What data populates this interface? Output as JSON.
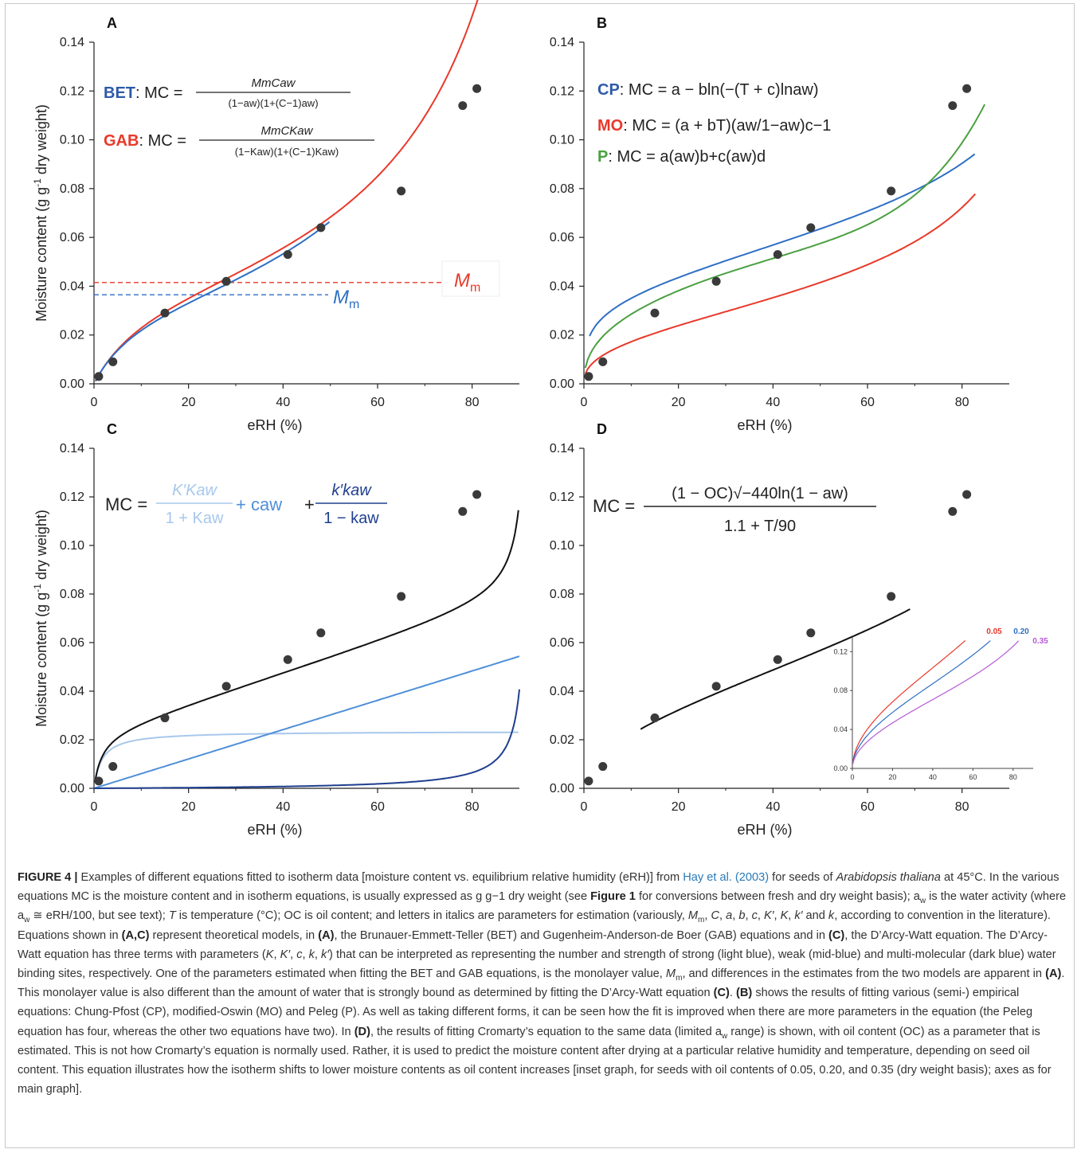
{
  "panels": [
    {
      "id": "A",
      "letter": "A",
      "xlabel": "eRH (%)",
      "ylabel": "Moisture content (g g-1 dry weight)",
      "xticks": [
        0,
        20,
        40,
        60,
        80
      ],
      "yticks": [
        "0.00",
        "0.02",
        "0.04",
        "0.06",
        "0.08",
        "0.10",
        "0.12",
        "0.14"
      ],
      "xlim": [
        0,
        90
      ],
      "ylim": [
        0,
        0.14
      ],
      "points": [
        [
          1,
          0.003
        ],
        [
          4,
          0.009
        ],
        [
          15,
          0.029
        ],
        [
          28,
          0.042
        ],
        [
          41,
          0.053
        ],
        [
          48,
          0.064
        ],
        [
          65,
          0.079
        ],
        [
          78,
          0.114
        ],
        [
          81,
          0.121
        ]
      ],
      "equations": [
        {
          "label": "BET",
          "lhs": ": MC = ",
          "numerator": "MmCaw",
          "denominator": "(1−aw)(1+(C−1)aw)",
          "color": "#2e5aa8"
        },
        {
          "label": "GAB",
          "lhs": ": MC = ",
          "numerator": "MmCKaw",
          "denominator": "(1−Kaw)(1+(C−1)Kaw)",
          "color": "#e8392a"
        }
      ],
      "monolayer": [
        {
          "model": "GAB",
          "value": 0.0415,
          "label": "Mm",
          "color": "#e8392a"
        },
        {
          "model": "BET",
          "value": 0.0365,
          "label": "Mm",
          "color": "#2e6fc4"
        }
      ]
    },
    {
      "id": "B",
      "letter": "B",
      "xlabel": "eRH (%)",
      "xticks": [
        0,
        20,
        40,
        60,
        80
      ],
      "yticks": [
        "0.00",
        "0.02",
        "0.04",
        "0.06",
        "0.08",
        "0.10",
        "0.12",
        "0.14"
      ],
      "xlim": [
        0,
        90
      ],
      "ylim": [
        0,
        0.14
      ],
      "points": [
        [
          1,
          0.003
        ],
        [
          4,
          0.009
        ],
        [
          15,
          0.029
        ],
        [
          28,
          0.042
        ],
        [
          41,
          0.053
        ],
        [
          48,
          0.064
        ],
        [
          65,
          0.079
        ],
        [
          78,
          0.114
        ],
        [
          81,
          0.121
        ]
      ],
      "equations": [
        {
          "label": "CP",
          "text": ": MC = a − bln(−(T + c)lnaw)",
          "color": "#2e5aa8"
        },
        {
          "label": "MO",
          "text": ": MC = (a + bT)(aw/1−aw)c−1",
          "color": "#e8392a"
        },
        {
          "label": "P",
          "text": ": MC = a(aw)b+c(aw)d",
          "color": "#4aa040"
        }
      ]
    },
    {
      "id": "C",
      "letter": "C",
      "xlabel": "eRH (%)",
      "ylabel": "Moisture content (g g-1 dry weight)",
      "xticks": [
        0,
        20,
        40,
        60,
        80
      ],
      "yticks": [
        "0.00",
        "0.02",
        "0.04",
        "0.06",
        "0.08",
        "0.10",
        "0.12",
        "0.14"
      ],
      "xlim": [
        0,
        90
      ],
      "ylim": [
        0,
        0.14
      ],
      "points": [
        [
          1,
          0.003
        ],
        [
          4,
          0.009
        ],
        [
          15,
          0.029
        ],
        [
          28,
          0.042
        ],
        [
          41,
          0.053
        ],
        [
          48,
          0.064
        ],
        [
          65,
          0.079
        ],
        [
          78,
          0.114
        ],
        [
          81,
          0.121
        ]
      ],
      "equation": {
        "lhs": "MC =",
        "t1_num": "K′Kaw",
        "t1_den": "1 + Kaw",
        "t2": "+ caw",
        "t3_num": "k′kaw",
        "t3_den": "1 − kaw"
      },
      "colors": {
        "total": "#111111",
        "strong": "#a7c8ec",
        "weak": "#4f8fd8",
        "multi": "#1f3f8f"
      }
    },
    {
      "id": "D",
      "letter": "D",
      "xlabel": "eRH (%)",
      "xticks": [
        0,
        20,
        40,
        60,
        80
      ],
      "yticks": [
        "0.00",
        "0.02",
        "0.04",
        "0.06",
        "0.08",
        "0.10",
        "0.12",
        "0.14"
      ],
      "xlim": [
        0,
        90
      ],
      "ylim": [
        0,
        0.14
      ],
      "points": [
        [
          1,
          0.003
        ],
        [
          4,
          0.009
        ],
        [
          15,
          0.029
        ],
        [
          28,
          0.042
        ],
        [
          41,
          0.053
        ],
        [
          48,
          0.064
        ],
        [
          65,
          0.079
        ],
        [
          78,
          0.114
        ],
        [
          81,
          0.121
        ]
      ],
      "equation": {
        "lhs": "MC =",
        "numerator": "(1 − OC)√−440ln(1 − aw)",
        "denominator": "1.1 + T/90"
      },
      "inset": {
        "xticks": [
          0,
          20,
          40,
          60,
          80
        ],
        "yticks": [
          "0.00",
          "0.04",
          "0.08",
          "0.12"
        ],
        "xlim": [
          0,
          90
        ],
        "ylim": [
          0,
          0.135
        ],
        "series": [
          {
            "name": "0.05",
            "oc": 0.05,
            "color": "#e8392a"
          },
          {
            "name": "0.20",
            "oc": 0.2,
            "color": "#2e6fc4"
          },
          {
            "name": "0.35",
            "oc": 0.35,
            "color": "#b45ad6"
          }
        ]
      }
    }
  ],
  "caption": {
    "title": "FIGURE 4 |",
    "segments": [
      {
        "t": " Examples of different equations fitted to isotherm data [moisture content vs. equilibrium relative humidity (eRH)] from "
      },
      {
        "t": "Hay et al. (2003)",
        "s": "ref"
      },
      {
        "t": " for seeds of "
      },
      {
        "t": "Arabidopsis thaliana",
        "s": "i"
      },
      {
        "t": " at 45°C. In the various equations MC is the moisture content and in isotherm equations, is usually expressed as g g−1 dry weight (see "
      },
      {
        "t": "Figure 1",
        "s": "b"
      },
      {
        "t": " for conversions between fresh and dry weight basis); a"
      },
      {
        "t": "w",
        "s": "sub"
      },
      {
        "t": " is the water activity (where a"
      },
      {
        "t": "w",
        "s": "sub"
      },
      {
        "t": " ≅ eRH/100, but see text); "
      },
      {
        "t": "T",
        "s": "i"
      },
      {
        "t": " is temperature (°C); OC is oil content; and letters in italics are parameters for estimation (variously, "
      },
      {
        "t": "M",
        "s": "i"
      },
      {
        "t": "m",
        "s": "sub"
      },
      {
        "t": ", "
      },
      {
        "t": "C",
        "s": "i"
      },
      {
        "t": ", "
      },
      {
        "t": "a",
        "s": "i"
      },
      {
        "t": ", "
      },
      {
        "t": "b",
        "s": "i"
      },
      {
        "t": ", "
      },
      {
        "t": "c",
        "s": "i"
      },
      {
        "t": ", "
      },
      {
        "t": "K′",
        "s": "i"
      },
      {
        "t": ", "
      },
      {
        "t": "K",
        "s": "i"
      },
      {
        "t": ", "
      },
      {
        "t": "k′",
        "s": "i"
      },
      {
        "t": " and "
      },
      {
        "t": "k",
        "s": "i"
      },
      {
        "t": ", according to convention in the literature). Equations shown in "
      },
      {
        "t": "(A,C)",
        "s": "b"
      },
      {
        "t": " represent theoretical models, in "
      },
      {
        "t": "(A)",
        "s": "b"
      },
      {
        "t": ", the Brunauer-Emmett-Teller (BET) and Gugenheim-Anderson-de Boer (GAB) equations and in "
      },
      {
        "t": "(C)",
        "s": "b"
      },
      {
        "t": ", the D’Arcy-Watt equation. The D’Arcy-Watt equation has three terms with parameters ("
      },
      {
        "t": "K",
        "s": "i"
      },
      {
        "t": ", "
      },
      {
        "t": "K′",
        "s": "i"
      },
      {
        "t": ", "
      },
      {
        "t": "c",
        "s": "i"
      },
      {
        "t": ", "
      },
      {
        "t": "k",
        "s": "i"
      },
      {
        "t": ", "
      },
      {
        "t": "k′",
        "s": "i"
      },
      {
        "t": ") that can be interpreted as representing the number and strength of strong (light blue), weak (mid-blue) and multi-molecular (dark blue) water binding sites, respectively. One of the parameters estimated when fitting the BET and GAB equations, is the monolayer value, "
      },
      {
        "t": "M",
        "s": "i"
      },
      {
        "t": "m",
        "s": "sub"
      },
      {
        "t": ", and differences in the estimates from the two models are apparent in "
      },
      {
        "t": "(A)",
        "s": "b"
      },
      {
        "t": ". This monolayer value is also different than the amount of water that is strongly bound as determined by fitting the D’Arcy-Watt equation "
      },
      {
        "t": "(C)",
        "s": "b"
      },
      {
        "t": ". "
      },
      {
        "t": "(B)",
        "s": "b"
      },
      {
        "t": " shows the results of fitting various (semi-) empirical equations: Chung-Pfost (CP), modified-Oswin (MO) and Peleg (P). As well as taking different forms, it can be seen how the fit is improved when there are more parameters in the equation (the Peleg equation has four, whereas the other two equations have two). In "
      },
      {
        "t": "(D)",
        "s": "b"
      },
      {
        "t": ", the results of fitting Cromarty’s equation to the same data (limited a"
      },
      {
        "t": "w",
        "s": "sub"
      },
      {
        "t": " range) is shown, with oil content (OC) as a parameter that is estimated. This is not how Cromarty’s equation is normally used. Rather, it is used to predict the moisture content after drying at a particular relative humidity and temperature, depending on seed oil content. This equation illustrates how the isotherm shifts to lower moisture contents as oil content increases [inset graph, for seeds with oil contents of 0.05, 0.20, and 0.35 (dry weight basis); axes as for main graph]."
      }
    ]
  },
  "chart_data": [
    {
      "type": "scatter",
      "panel": "A",
      "x": [
        1,
        4,
        15,
        28,
        41,
        48,
        65,
        78,
        81
      ],
      "y": [
        0.003,
        0.009,
        0.029,
        0.042,
        0.053,
        0.064,
        0.079,
        0.114,
        0.121
      ],
      "series": [
        {
          "name": "BET",
          "color": "#2e6fc4"
        },
        {
          "name": "GAB",
          "color": "#e8392a"
        }
      ],
      "xlabel": "eRH (%)",
      "ylabel": "Moisture content (g g-1 dry weight)",
      "xlim": [
        0,
        90
      ],
      "ylim": [
        0,
        0.14
      ]
    },
    {
      "type": "scatter",
      "panel": "B",
      "x": [
        1,
        4,
        15,
        28,
        41,
        48,
        65,
        78,
        81
      ],
      "y": [
        0.003,
        0.009,
        0.029,
        0.042,
        0.053,
        0.064,
        0.079,
        0.114,
        0.121
      ],
      "series": [
        {
          "name": "CP",
          "color": "#2e6fc4"
        },
        {
          "name": "MO",
          "color": "#e8392a"
        },
        {
          "name": "P",
          "color": "#4aa040"
        }
      ],
      "xlabel": "eRH (%)",
      "xlim": [
        0,
        90
      ],
      "ylim": [
        0,
        0.14
      ]
    },
    {
      "type": "scatter",
      "panel": "C",
      "x": [
        1,
        4,
        15,
        28,
        41,
        48,
        65,
        78,
        81
      ],
      "y": [
        0.003,
        0.009,
        0.029,
        0.042,
        0.053,
        0.064,
        0.079,
        0.114,
        0.121
      ],
      "xlabel": "eRH (%)",
      "ylabel": "Moisture content (g g-1 dry weight)",
      "xlim": [
        0,
        90
      ],
      "ylim": [
        0,
        0.14
      ]
    },
    {
      "type": "scatter",
      "panel": "D",
      "x": [
        1,
        4,
        15,
        28,
        41,
        48,
        65,
        78,
        81
      ],
      "y": [
        0.003,
        0.009,
        0.029,
        0.042,
        0.053,
        0.064,
        0.079,
        0.114,
        0.121
      ],
      "xlabel": "eRH (%)",
      "xlim": [
        0,
        90
      ],
      "ylim": [
        0,
        0.14
      ]
    },
    {
      "type": "line",
      "panel": "D-inset",
      "series": [
        {
          "name": "0.05"
        },
        {
          "name": "0.20"
        },
        {
          "name": "0.35"
        }
      ],
      "xlim": [
        0,
        90
      ],
      "ylim": [
        0,
        0.135
      ]
    }
  ]
}
